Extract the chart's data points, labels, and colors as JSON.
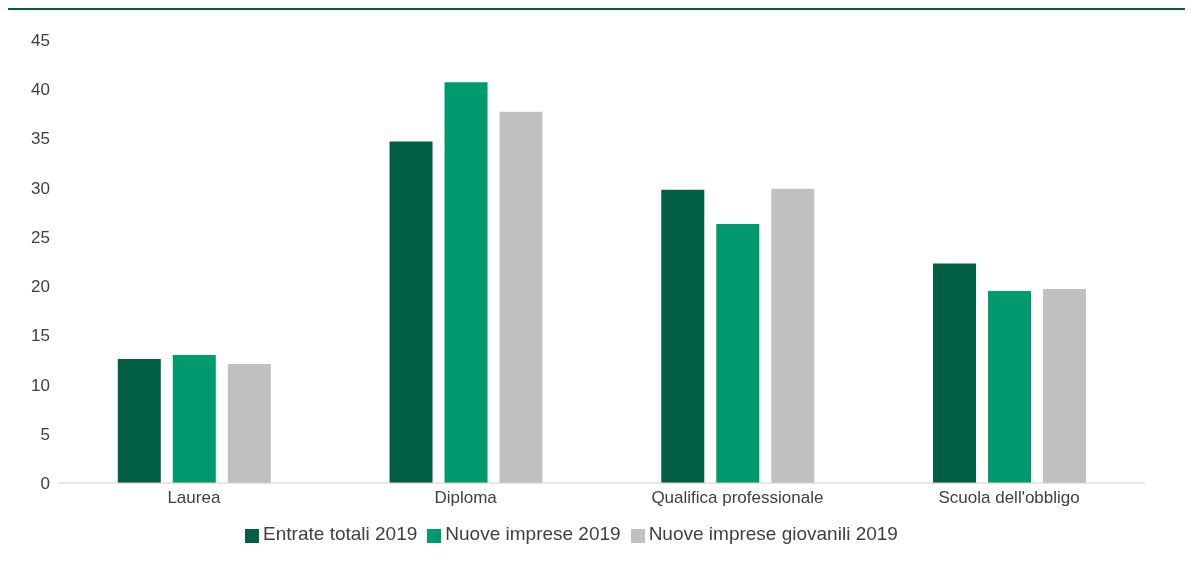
{
  "chart_data": {
    "type": "bar",
    "categories": [
      "Laurea",
      "Diploma",
      "Qualifica professionale",
      "Scuola dell'obbligo"
    ],
    "series": [
      {
        "name": "Entrate totali 2019",
        "color": "#005f45",
        "values": [
          12.6,
          34.7,
          29.8,
          22.3
        ]
      },
      {
        "name": "Nuove imprese 2019",
        "color": "#009a6e",
        "values": [
          13.0,
          40.7,
          26.3,
          19.5
        ]
      },
      {
        "name": "Nuove imprese giovanili 2019",
        "color": "#c0c0c0",
        "values": [
          12.1,
          37.7,
          29.9,
          19.7
        ]
      }
    ],
    "ylim": [
      0,
      45
    ],
    "yticks": [
      0,
      5,
      10,
      15,
      20,
      25,
      30,
      35,
      40,
      45
    ],
    "grid": false,
    "legend": "bottom"
  }
}
